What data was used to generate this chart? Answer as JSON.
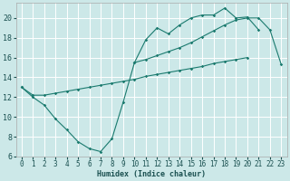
{
  "xlabel": "Humidex (Indice chaleur)",
  "bg_color": "#cce8e8",
  "grid_color": "#ffffff",
  "line_color": "#1a7a6e",
  "xlim": [
    -0.5,
    23.5
  ],
  "ylim": [
    6,
    21.5
  ],
  "xticks": [
    0,
    1,
    2,
    3,
    4,
    5,
    6,
    7,
    8,
    9,
    10,
    11,
    12,
    13,
    14,
    15,
    16,
    17,
    18,
    19,
    20,
    21,
    22,
    23
  ],
  "yticks": [
    6,
    8,
    10,
    12,
    14,
    16,
    18,
    20
  ],
  "curve1_y": [
    13.0,
    12.0,
    11.2,
    9.8,
    8.7,
    7.5,
    6.8,
    6.5,
    7.8,
    11.5,
    15.5,
    17.8,
    19.0,
    18.4,
    19.3,
    20.0,
    20.3,
    20.3,
    21.0,
    20.0,
    20.1,
    18.8,
    null,
    null
  ],
  "curve2_y": [
    13.0,
    12.2,
    12.2,
    12.4,
    12.6,
    12.8,
    13.0,
    13.2,
    13.4,
    13.6,
    13.8,
    14.1,
    14.3,
    14.5,
    14.7,
    14.9,
    15.1,
    15.4,
    15.6,
    15.8,
    16.0,
    null,
    null,
    null
  ],
  "curve3_y": [
    null,
    null,
    null,
    null,
    null,
    null,
    null,
    null,
    null,
    null,
    15.5,
    15.8,
    16.2,
    16.6,
    17.0,
    17.5,
    18.1,
    18.7,
    19.3,
    19.8,
    20.0,
    20.0,
    18.8,
    15.3
  ]
}
